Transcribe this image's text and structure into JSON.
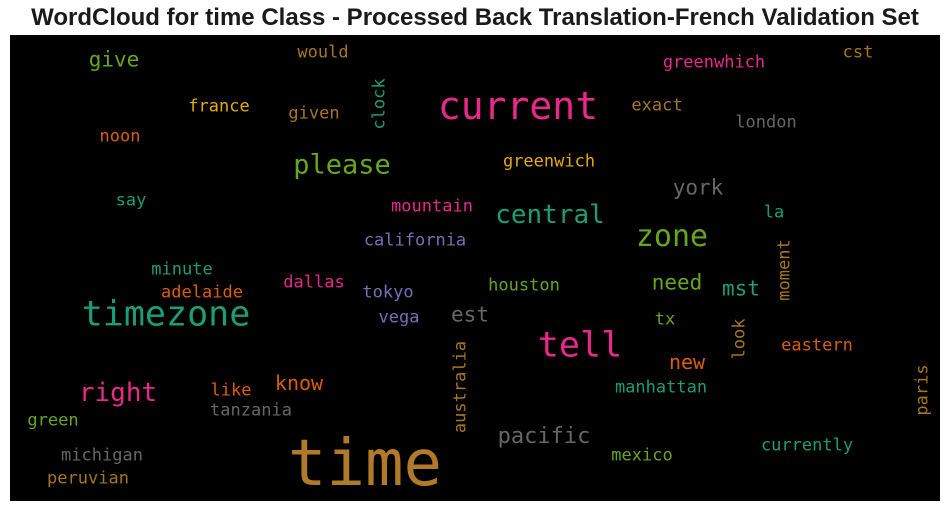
{
  "title": "WordCloud for time Class - Processed Back Translation-French Validation Set",
  "chart_data": {
    "type": "wordcloud",
    "background": "#000000",
    "words": [
      {
        "text": "time",
        "color": "#b07a2a"
      },
      {
        "text": "current",
        "color": "#e7298a"
      },
      {
        "text": "timezone",
        "color": "#1b9e77"
      },
      {
        "text": "tell",
        "color": "#e7298a"
      },
      {
        "text": "zone",
        "color": "#66a61e"
      },
      {
        "text": "please",
        "color": "#66a61e"
      },
      {
        "text": "central",
        "color": "#1b9e77"
      },
      {
        "text": "right",
        "color": "#e7298a"
      },
      {
        "text": "pacific",
        "color": "#666666"
      },
      {
        "text": "york",
        "color": "#666666"
      },
      {
        "text": "give",
        "color": "#66a61e"
      },
      {
        "text": "need",
        "color": "#66a61e"
      },
      {
        "text": "mst",
        "color": "#1b9e77"
      },
      {
        "text": "est",
        "color": "#666666"
      },
      {
        "text": "know",
        "color": "#d95f02"
      },
      {
        "text": "new",
        "color": "#d95f02"
      },
      {
        "text": "greenwich",
        "color": "#e6ab02"
      },
      {
        "text": "greenwhich",
        "color": "#e7298a"
      },
      {
        "text": "california",
        "color": "#7570b3"
      },
      {
        "text": "mountain",
        "color": "#e7298a"
      },
      {
        "text": "dallas",
        "color": "#e7298a"
      },
      {
        "text": "houston",
        "color": "#66a61e"
      },
      {
        "text": "adelaide",
        "color": "#d95f02"
      },
      {
        "text": "tokyo",
        "color": "#7570b3"
      },
      {
        "text": "vega",
        "color": "#7570b3"
      },
      {
        "text": "minute",
        "color": "#1b9e77"
      },
      {
        "text": "manhattan",
        "color": "#1b9e77"
      },
      {
        "text": "eastern",
        "color": "#d95f02"
      },
      {
        "text": "currently",
        "color": "#1b9e77"
      },
      {
        "text": "mexico",
        "color": "#66a61e"
      },
      {
        "text": "tanzania",
        "color": "#666666"
      },
      {
        "text": "michigan",
        "color": "#666666"
      },
      {
        "text": "peruvian",
        "color": "#a6761d"
      },
      {
        "text": "green",
        "color": "#66a61e"
      },
      {
        "text": "like",
        "color": "#d95f02"
      },
      {
        "text": "france",
        "color": "#e6ab02"
      },
      {
        "text": "given",
        "color": "#a6761d"
      },
      {
        "text": "would",
        "color": "#a6761d"
      },
      {
        "text": "noon",
        "color": "#d95f02"
      },
      {
        "text": "say",
        "color": "#1b9e77"
      },
      {
        "text": "exact",
        "color": "#a6761d"
      },
      {
        "text": "london",
        "color": "#666666"
      },
      {
        "text": "cst",
        "color": "#a6761d"
      },
      {
        "text": "la",
        "color": "#1b9e77"
      },
      {
        "text": "tx",
        "color": "#66a61e"
      },
      {
        "text": "clock",
        "color": "#1b9e77"
      },
      {
        "text": "australia",
        "color": "#a6761d"
      },
      {
        "text": "look",
        "color": "#a6761d"
      },
      {
        "text": "moment",
        "color": "#a6761d"
      },
      {
        "text": "paris",
        "color": "#a6761d"
      }
    ]
  }
}
